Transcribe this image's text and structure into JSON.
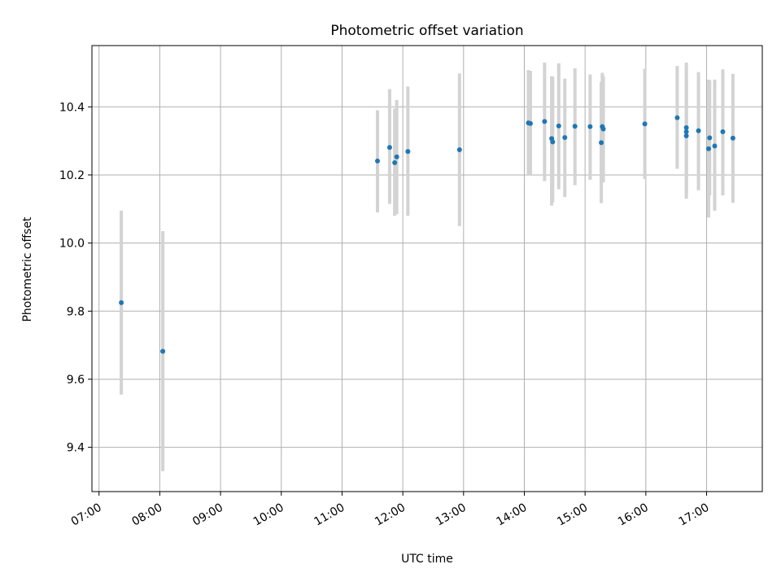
{
  "chart_data": {
    "type": "scatter",
    "title": "Photometric offset variation",
    "xlabel": "UTC time",
    "ylabel": "Photometric offset",
    "x_unit": "UTC time (HH:MM)",
    "xlim": [
      "06:53",
      "17:55"
    ],
    "ylim": [
      9.27,
      10.58
    ],
    "grid": true,
    "x_ticks": [
      "07:00",
      "08:00",
      "09:00",
      "10:00",
      "11:00",
      "12:00",
      "13:00",
      "14:00",
      "15:00",
      "16:00",
      "17:00"
    ],
    "y_ticks": [
      9.4,
      9.6,
      9.8,
      10.0,
      10.2,
      10.4
    ],
    "y_tick_labels": [
      "9.4",
      "9.6",
      "9.8",
      "10.0",
      "10.2",
      "10.4"
    ],
    "marker_color": "#1f77b4",
    "errorbar_color": "#d3d3d3",
    "points": [
      {
        "x": "07:22",
        "y": 9.825,
        "lo": 9.555,
        "hi": 10.095
      },
      {
        "x": "08:03",
        "y": 9.682,
        "lo": 9.33,
        "hi": 10.035
      },
      {
        "x": "11:35",
        "y": 10.241,
        "lo": 10.09,
        "hi": 10.39
      },
      {
        "x": "11:47",
        "y": 10.281,
        "lo": 10.115,
        "hi": 10.452
      },
      {
        "x": "11:52",
        "y": 10.236,
        "lo": 10.08,
        "hi": 10.395
      },
      {
        "x": "11:54",
        "y": 10.253,
        "lo": 10.085,
        "hi": 10.42
      },
      {
        "x": "12:05",
        "y": 10.269,
        "lo": 10.08,
        "hi": 10.46
      },
      {
        "x": "12:56",
        "y": 10.274,
        "lo": 10.05,
        "hi": 10.498
      },
      {
        "x": "14:04",
        "y": 10.353,
        "lo": 10.2,
        "hi": 10.508
      },
      {
        "x": "14:06",
        "y": 10.351,
        "lo": 10.2,
        "hi": 10.506
      },
      {
        "x": "14:20",
        "y": 10.357,
        "lo": 10.182,
        "hi": 10.53
      },
      {
        "x": "14:27",
        "y": 10.307,
        "lo": 10.11,
        "hi": 10.49
      },
      {
        "x": "14:28",
        "y": 10.297,
        "lo": 10.12,
        "hi": 10.488
      },
      {
        "x": "14:34",
        "y": 10.344,
        "lo": 10.158,
        "hi": 10.528
      },
      {
        "x": "14:40",
        "y": 10.31,
        "lo": 10.135,
        "hi": 10.483
      },
      {
        "x": "14:50",
        "y": 10.343,
        "lo": 10.17,
        "hi": 10.513
      },
      {
        "x": "15:05",
        "y": 10.342,
        "lo": 10.186,
        "hi": 10.495
      },
      {
        "x": "15:16",
        "y": 10.295,
        "lo": 10.117,
        "hi": 10.473
      },
      {
        "x": "15:17",
        "y": 10.342,
        "lo": 10.18,
        "hi": 10.5
      },
      {
        "x": "15:18",
        "y": 10.335,
        "lo": 10.178,
        "hi": 10.49
      },
      {
        "x": "15:59",
        "y": 10.35,
        "lo": 10.188,
        "hi": 10.512
      },
      {
        "x": "16:31",
        "y": 10.368,
        "lo": 10.218,
        "hi": 10.52
      },
      {
        "x": "16:40",
        "y": 10.339,
        "lo": 10.13,
        "hi": 10.53
      },
      {
        "x": "16:40",
        "y": 10.327,
        "lo": 10.14,
        "hi": 10.52
      },
      {
        "x": "16:40",
        "y": 10.315,
        "lo": 10.15,
        "hi": 10.48
      },
      {
        "x": "16:52",
        "y": 10.33,
        "lo": 10.155,
        "hi": 10.502
      },
      {
        "x": "17:02",
        "y": 10.277,
        "lo": 10.075,
        "hi": 10.48
      },
      {
        "x": "17:03",
        "y": 10.309,
        "lo": 10.14,
        "hi": 10.478
      },
      {
        "x": "17:08",
        "y": 10.285,
        "lo": 10.095,
        "hi": 10.48
      },
      {
        "x": "17:16",
        "y": 10.327,
        "lo": 10.14,
        "hi": 10.51
      },
      {
        "x": "17:26",
        "y": 10.308,
        "lo": 10.118,
        "hi": 10.497
      }
    ]
  }
}
